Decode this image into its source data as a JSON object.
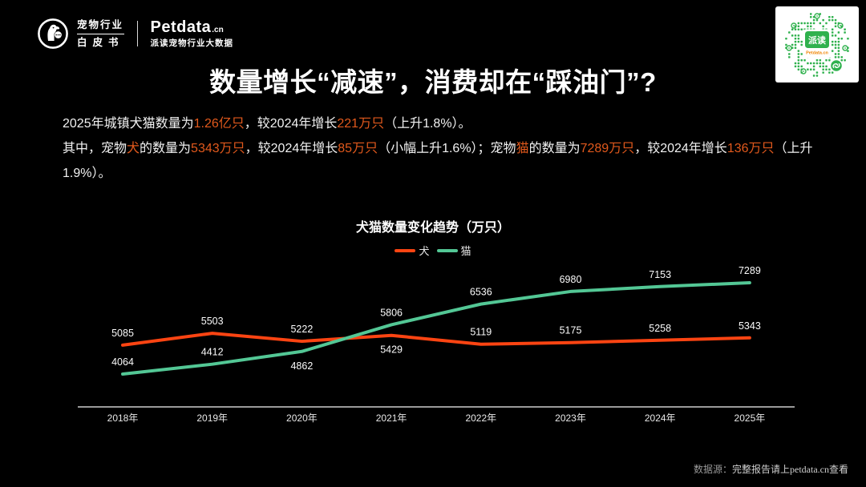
{
  "colors": {
    "background": "#000000",
    "highlight": "#e2591c",
    "dog_line": "#fc4412",
    "cat_line": "#53c795",
    "qr_green": "#2fb14d",
    "qr_orange": "#f08300",
    "axis": "#9a9a9a"
  },
  "header": {
    "logo": {
      "line1": "宠物行业",
      "line2": "白皮书"
    },
    "brand": {
      "name": "Petdata",
      "suffix": ".cn",
      "subtitle": "派读宠物行业大数据"
    },
    "qr": {
      "center_label": "派读",
      "center_sub": "Petdata.cn"
    }
  },
  "title": "数量增长“减速”，消费却在“踩油门”?",
  "intro": {
    "paragraphs": [
      [
        {
          "t": "2025年城镇犬猫数量为"
        },
        {
          "t": "1.26亿只",
          "h": true
        },
        {
          "t": "，较2024年增长"
        },
        {
          "t": "221万只",
          "h": true
        },
        {
          "t": "（上升1.8%）。"
        }
      ],
      [
        {
          "t": "其中，宠物"
        },
        {
          "t": "犬",
          "h": true
        },
        {
          "t": "的数量为"
        },
        {
          "t": "5343万只",
          "h": true
        },
        {
          "t": "，较2024年增长"
        },
        {
          "t": "85万只",
          "h": true
        },
        {
          "t": "（小幅上升1.6%）；宠物"
        },
        {
          "t": "猫",
          "h": true
        },
        {
          "t": "的数量为"
        },
        {
          "t": "7289万只",
          "h": true
        },
        {
          "t": "，较2024年增长"
        },
        {
          "t": "136万只",
          "h": true
        },
        {
          "t": "（上升1.9%）。"
        }
      ]
    ]
  },
  "chart_data": {
    "type": "line",
    "title": "犬猫数量变化趋势（万只）",
    "categories": [
      "2018年",
      "2019年",
      "2020年",
      "2021年",
      "2022年",
      "2023年",
      "2024年",
      "2025年"
    ],
    "series": [
      {
        "key": "dog",
        "name": "犬",
        "color": "#fc4412",
        "values": [
          5085,
          5503,
          5222,
          5429,
          5119,
          5175,
          5258,
          5343
        ],
        "label_pos": [
          "above",
          "above",
          "above",
          "below",
          "above",
          "above",
          "above",
          "above"
        ]
      },
      {
        "key": "cat",
        "name": "猫",
        "color": "#53c795",
        "values": [
          4064,
          4412,
          4862,
          5806,
          6536,
          6980,
          7153,
          7289
        ],
        "label_pos": [
          "above",
          "above",
          "below",
          "above",
          "above",
          "above",
          "above",
          "above"
        ]
      }
    ],
    "ylim": [
      3800,
      7600
    ],
    "grid": false,
    "legend_position": "top-center",
    "x_axis_line": true,
    "data_labels": true
  },
  "footer": {
    "source_label": "数据源：",
    "source_text": "完整报告请上petdata.cn查看"
  }
}
